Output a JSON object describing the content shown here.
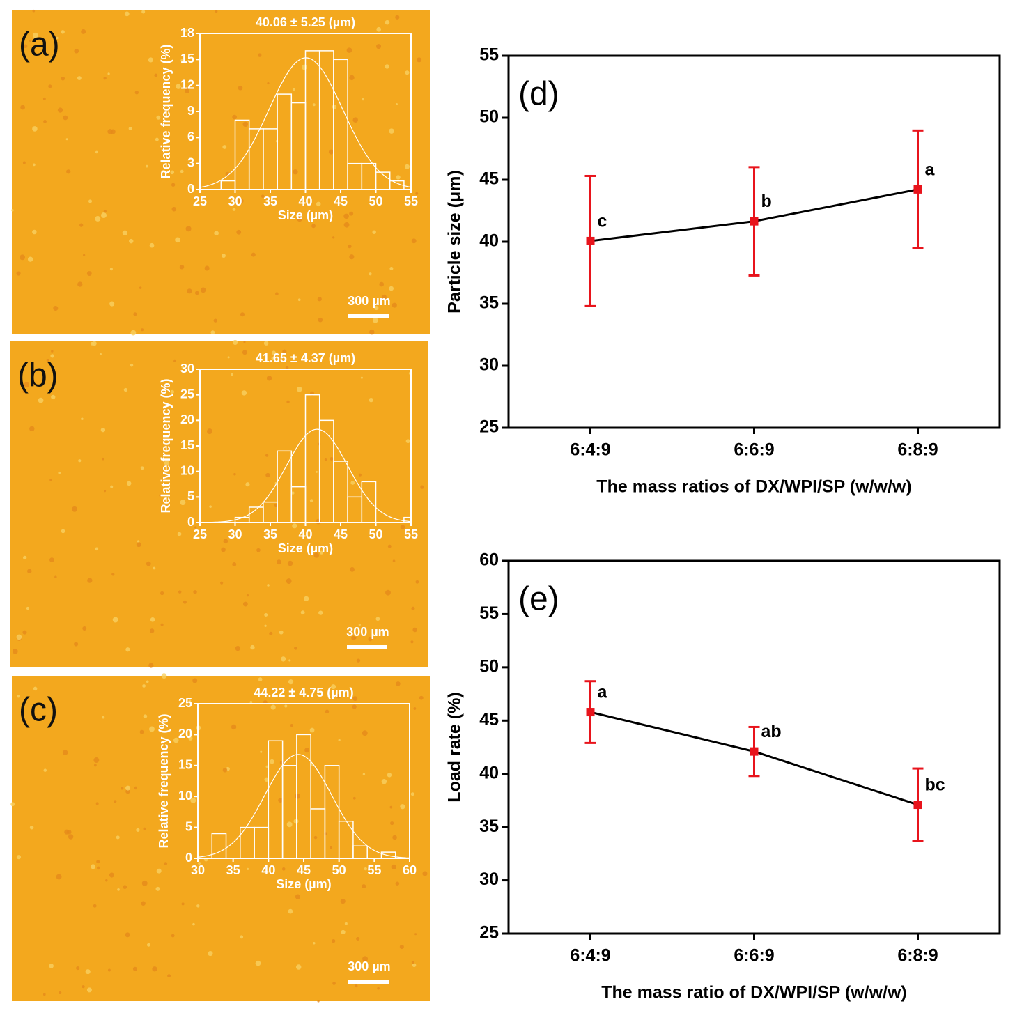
{
  "chart_data": [
    {
      "type": "histogram",
      "panel_label": "(a)",
      "scale_bar": "300 µm",
      "title": "40.06 ± 5.25 (µm)",
      "x_label": "Size (µm)",
      "y_label": "Relative frequency (%)",
      "bins": [
        28,
        30,
        32,
        34,
        36,
        38,
        40,
        42,
        44,
        46,
        48,
        50,
        52,
        54
      ],
      "counts": [
        1,
        8,
        7,
        7,
        11,
        10,
        16,
        16,
        15,
        3,
        3,
        2,
        1
      ],
      "fit": {
        "mean": 40.06,
        "sd": 5.25
      },
      "xlim": [
        25,
        55
      ],
      "xticks": [
        25,
        30,
        35,
        40,
        45,
        50,
        55
      ],
      "ylim": [
        0,
        18
      ],
      "yticks": [
        0,
        3,
        6,
        9,
        12,
        15,
        18
      ],
      "color": "#ffffff"
    },
    {
      "type": "histogram",
      "panel_label": "(b)",
      "scale_bar": "300 µm",
      "title": "41.65 ± 4.37 (µm)",
      "x_label": "Size (µm)",
      "y_label": "Relative frequency (%)",
      "bins": [
        30,
        32,
        34,
        36,
        38,
        40,
        42,
        44,
        46,
        48,
        50,
        52,
        54,
        56
      ],
      "counts": [
        1,
        3,
        4,
        14,
        7,
        25,
        20,
        12,
        5,
        8,
        0,
        0,
        1
      ],
      "fit": {
        "mean": 41.65,
        "sd": 4.37
      },
      "xlim": [
        25,
        55
      ],
      "xticks": [
        25,
        30,
        35,
        40,
        45,
        50,
        55
      ],
      "ylim": [
        0,
        30
      ],
      "yticks": [
        0,
        5,
        10,
        15,
        20,
        25,
        30
      ],
      "color": "#ffffff"
    },
    {
      "type": "histogram",
      "panel_label": "(c)",
      "scale_bar": "300 µm",
      "title": "44.22 ± 4.75 (µm)",
      "x_label": "Size (µm)",
      "y_label": "Relative frequency (%)",
      "bins": [
        32,
        34,
        36,
        38,
        40,
        42,
        44,
        46,
        48,
        50,
        52,
        54,
        56,
        58
      ],
      "counts": [
        4,
        0,
        5,
        5,
        19,
        15,
        20,
        8,
        15,
        6,
        2,
        0,
        1
      ],
      "fit": {
        "mean": 44.22,
        "sd": 4.75
      },
      "xlim": [
        30,
        60
      ],
      "xticks": [
        30,
        35,
        40,
        45,
        50,
        55,
        60
      ],
      "ylim": [
        0,
        25
      ],
      "yticks": [
        0,
        5,
        10,
        15,
        20,
        25
      ],
      "color": "#ffffff"
    },
    {
      "type": "line",
      "panel_label": "(d)",
      "x_label": "The mass ratios of DX/WPI/SP (w/w/w)",
      "y_label": "Particle size (μm)",
      "categories": [
        "6:4:9",
        "6:6:9",
        "6:8:9"
      ],
      "values": [
        40.06,
        41.65,
        44.22
      ],
      "errors": [
        5.25,
        4.37,
        4.75
      ],
      "annotations": [
        "c",
        "b",
        "a"
      ],
      "ylim": [
        25,
        55
      ],
      "yticks": [
        25,
        30,
        35,
        40,
        45,
        50,
        55
      ],
      "color": "#000000",
      "error_color": "#e8141c"
    },
    {
      "type": "line",
      "panel_label": "(e)",
      "x_label": "The mass ratio of DX/WPI/SP (w/w/w)",
      "y_label": "Load rate (%)",
      "categories": [
        "6:4:9",
        "6:6:9",
        "6:8:9"
      ],
      "values": [
        45.8,
        42.1,
        37.1
      ],
      "errors": [
        2.9,
        2.3,
        3.4
      ],
      "annotations": [
        "a",
        "ab",
        "bc"
      ],
      "ylim": [
        25,
        60
      ],
      "yticks": [
        25,
        30,
        35,
        40,
        45,
        50,
        55,
        60
      ],
      "color": "#000000",
      "error_color": "#e8141c"
    }
  ]
}
